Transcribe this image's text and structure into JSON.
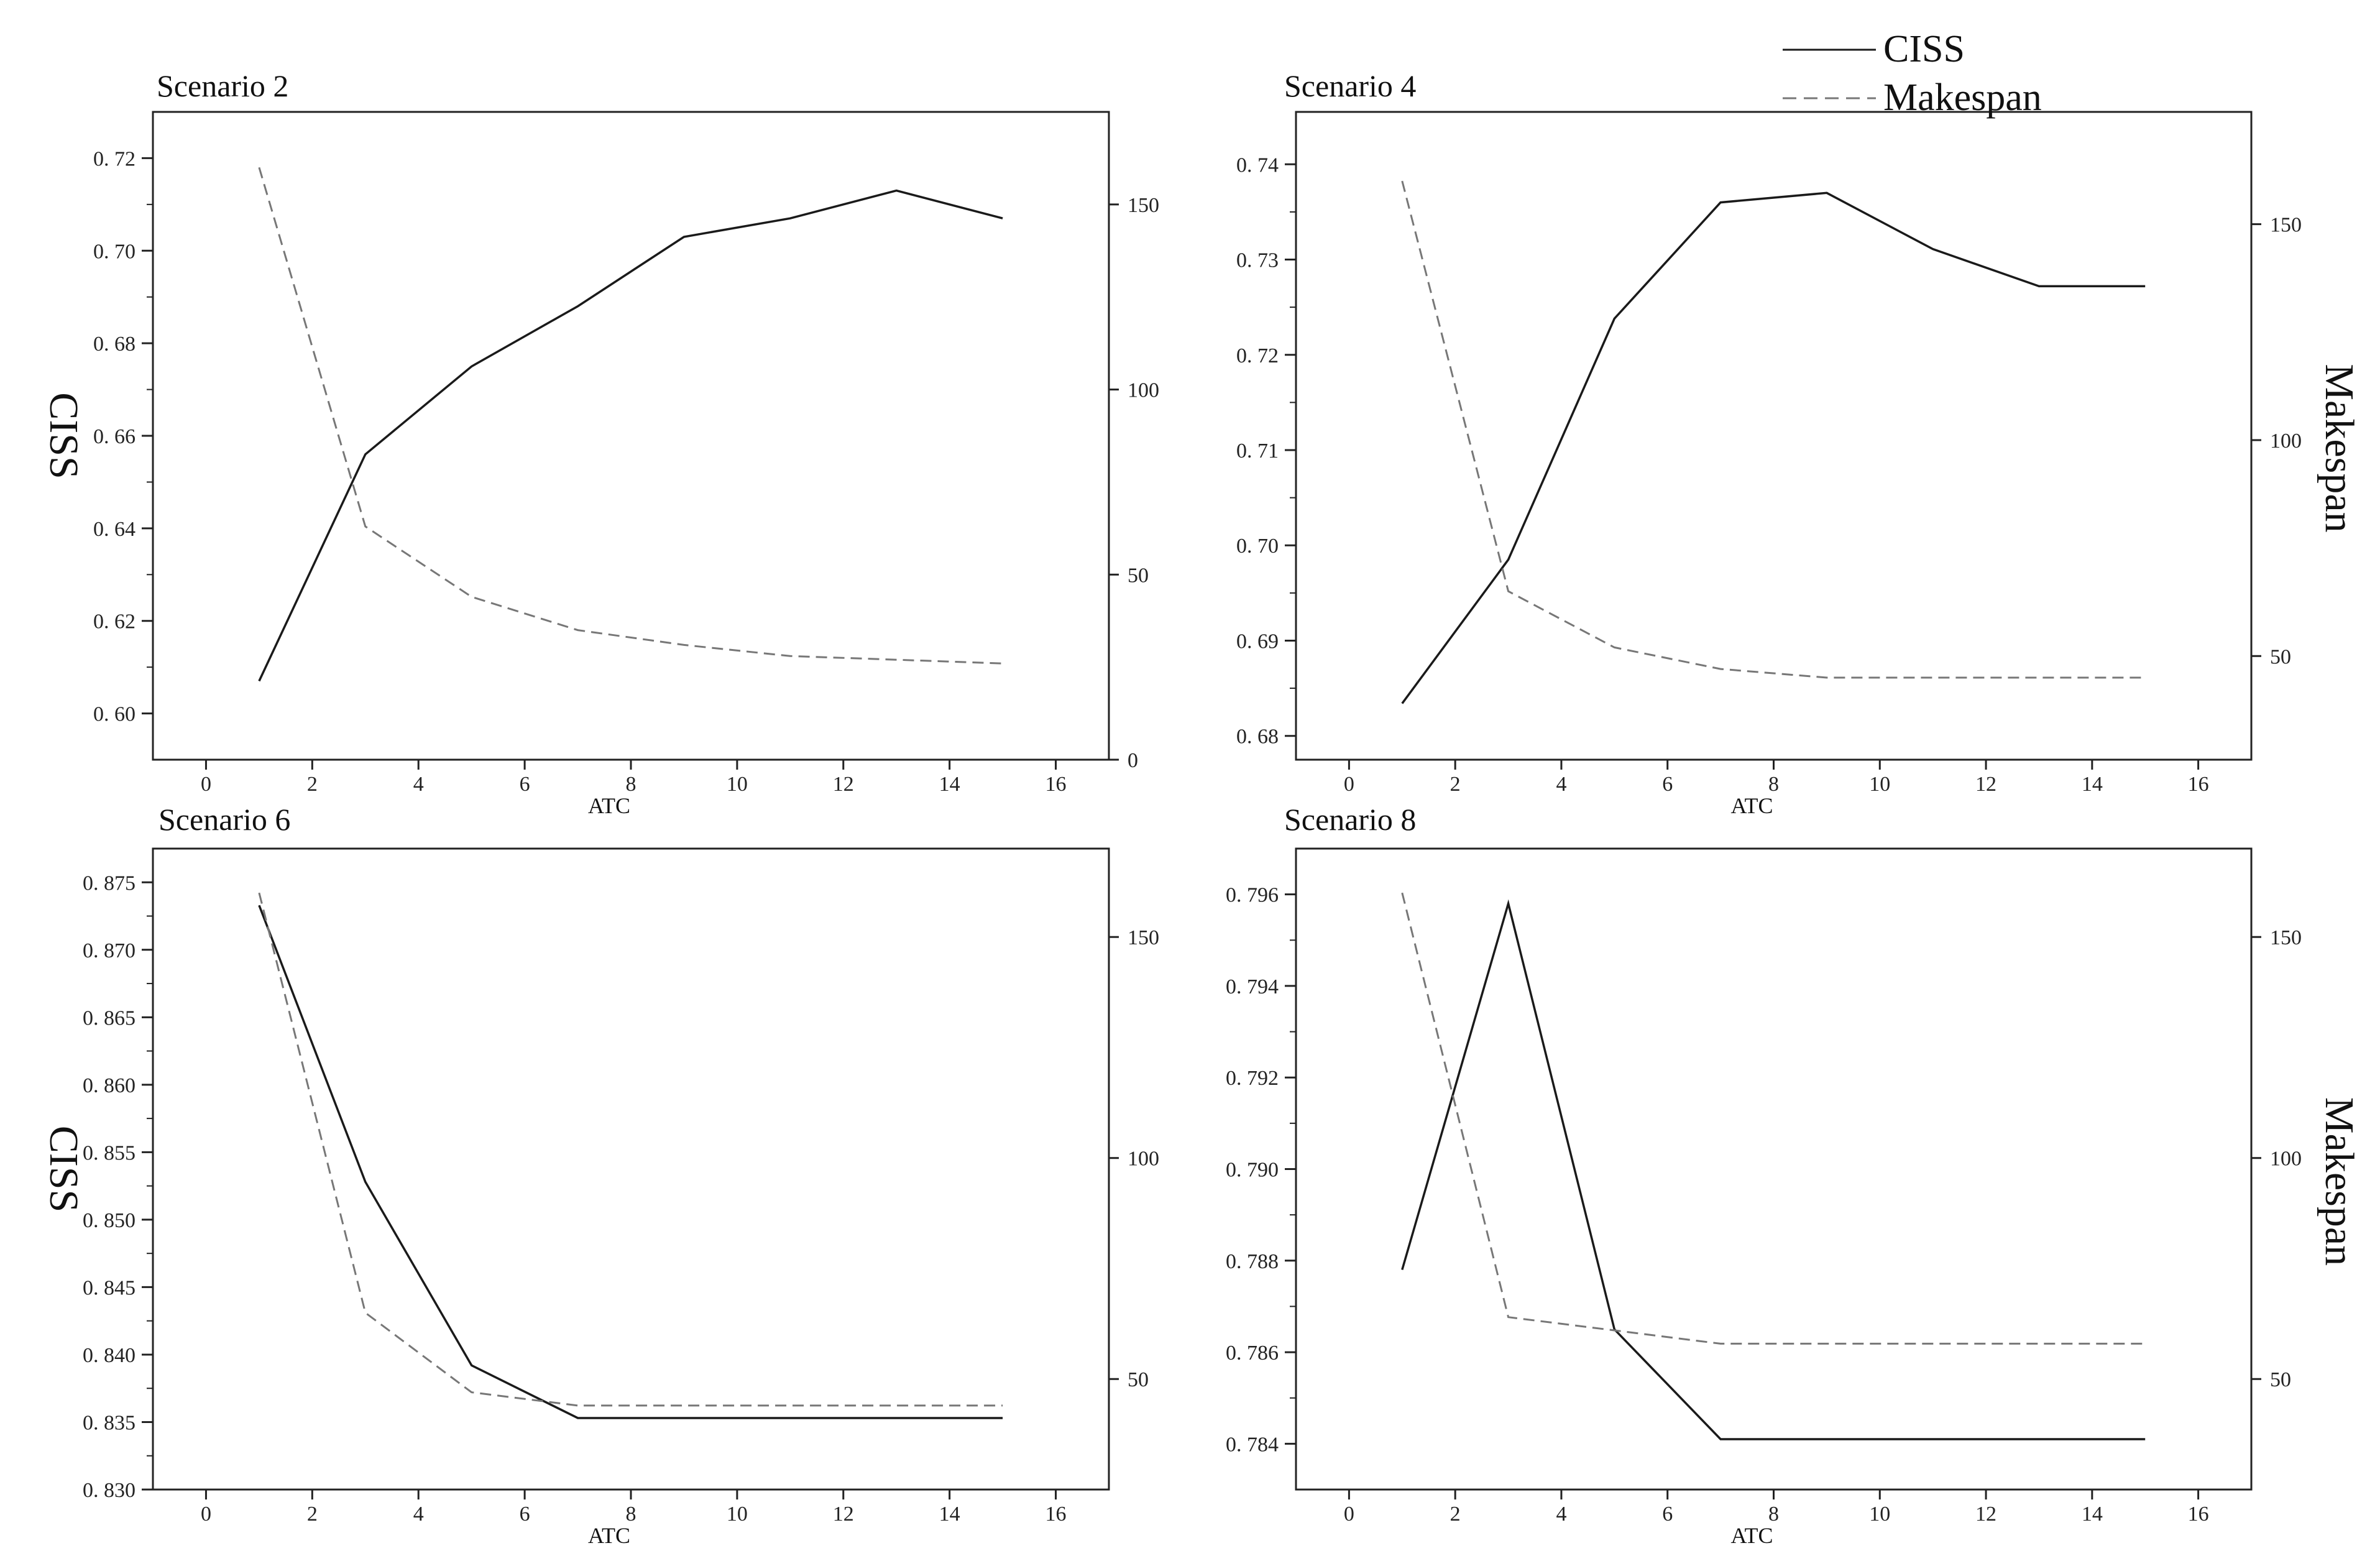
{
  "legend": {
    "entries": [
      {
        "label": "CISS",
        "style": "solid"
      },
      {
        "label": "Makespan",
        "style": "dashed"
      }
    ],
    "placement": "top-right"
  },
  "colors": {
    "ciss": "#1a1a1a",
    "makespan": "#777777",
    "axis": "#222222"
  },
  "chart_data": [
    {
      "type": "line",
      "title": "Scenario 2",
      "xlabel": "ATC",
      "ylabel": "CISS",
      "y2label": "",
      "xlim": [
        -1,
        17
      ],
      "xticks": [
        0,
        2,
        4,
        6,
        8,
        10,
        12,
        14,
        16
      ],
      "ylim": [
        0.59,
        0.73
      ],
      "yticks": [
        0.6,
        0.62,
        0.64,
        0.66,
        0.68,
        0.7,
        0.72
      ],
      "ytick_labels": [
        "0. 60",
        "0. 62",
        "0. 64",
        "0. 66",
        "0. 68",
        "0. 70",
        "0. 72"
      ],
      "y2lim": [
        0,
        175
      ],
      "y2ticks": [
        0,
        50,
        100,
        150
      ],
      "grid": false,
      "series": [
        {
          "name": "CISS",
          "axis": "left",
          "style": "solid",
          "x": [
            1,
            3,
            5,
            7,
            9,
            11,
            13,
            15
          ],
          "values": [
            0.607,
            0.656,
            0.675,
            0.688,
            0.703,
            0.707,
            0.713,
            0.707
          ]
        },
        {
          "name": "Makespan",
          "axis": "right",
          "style": "dashed",
          "x": [
            1,
            3,
            5,
            7,
            9,
            11,
            13,
            15
          ],
          "values": [
            160,
            63,
            44,
            35,
            31,
            28,
            27,
            26
          ]
        }
      ]
    },
    {
      "type": "line",
      "title": "Scenario 4",
      "xlabel": "ATC",
      "ylabel": "",
      "y2label": "Makespan",
      "xlim": [
        -1,
        17
      ],
      "xticks": [
        0,
        2,
        4,
        6,
        8,
        10,
        12,
        14,
        16
      ],
      "ylim": [
        0.6775,
        0.7455
      ],
      "yticks": [
        0.68,
        0.69,
        0.7,
        0.71,
        0.72,
        0.73,
        0.74
      ],
      "ytick_labels": [
        "0. 68",
        "0. 69",
        "0. 70",
        "0. 71",
        "0. 72",
        "0. 73",
        "0. 74"
      ],
      "y2lim": [
        26,
        176
      ],
      "y2ticks": [
        50,
        100,
        150
      ],
      "grid": false,
      "series": [
        {
          "name": "CISS",
          "axis": "left",
          "style": "solid",
          "x": [
            1,
            3,
            5,
            7,
            9,
            11,
            13,
            15
          ],
          "values": [
            0.6834,
            0.6985,
            0.7238,
            0.736,
            0.737,
            0.7311,
            0.7272,
            0.7272
          ]
        },
        {
          "name": "Makespan",
          "axis": "right",
          "style": "dashed",
          "x": [
            1,
            3,
            5,
            7,
            9,
            11,
            13,
            15
          ],
          "values": [
            160,
            65,
            52,
            47,
            45,
            45,
            45,
            45
          ]
        }
      ]
    },
    {
      "type": "line",
      "title": "Scenario 6",
      "xlabel": "ATC",
      "ylabel": "CISS",
      "y2label": "",
      "xlim": [
        -1,
        17
      ],
      "xticks": [
        0,
        2,
        4,
        6,
        8,
        10,
        12,
        14,
        16
      ],
      "ylim": [
        0.83,
        0.8775
      ],
      "yticks": [
        0.83,
        0.835,
        0.84,
        0.845,
        0.85,
        0.855,
        0.86,
        0.865,
        0.87,
        0.875
      ],
      "ytick_labels": [
        "0. 830",
        "0. 835",
        "0. 840",
        "0. 845",
        "0. 850",
        "0. 855",
        "0. 860",
        "0. 865",
        "0. 870",
        "0. 875"
      ],
      "y2lim": [
        25,
        170
      ],
      "y2ticks": [
        50,
        100,
        150
      ],
      "grid": false,
      "series": [
        {
          "name": "CISS",
          "axis": "left",
          "style": "solid",
          "x": [
            1,
            3,
            5,
            7,
            9,
            11,
            13,
            15
          ],
          "values": [
            0.8733,
            0.8528,
            0.8392,
            0.8353,
            0.8353,
            0.8353,
            0.8353,
            0.8353
          ]
        },
        {
          "name": "Makespan",
          "axis": "right",
          "style": "dashed",
          "x": [
            1,
            3,
            5,
            7,
            9,
            11,
            13,
            15
          ],
          "values": [
            160,
            65,
            47,
            44,
            44,
            44,
            44,
            44
          ]
        }
      ]
    },
    {
      "type": "line",
      "title": "Scenario 8",
      "xlabel": "ATC",
      "ylabel": "",
      "y2label": "Makespan",
      "xlim": [
        -1,
        17
      ],
      "xticks": [
        0,
        2,
        4,
        6,
        8,
        10,
        12,
        14,
        16
      ],
      "ylim": [
        0.783,
        0.797
      ],
      "yticks": [
        0.784,
        0.786,
        0.788,
        0.79,
        0.792,
        0.794,
        0.796
      ],
      "ytick_labels": [
        "0. 784",
        "0. 786",
        "0. 788",
        "0. 790",
        "0. 792",
        "0. 794",
        "0. 796"
      ],
      "y2lim": [
        25,
        170
      ],
      "y2ticks": [
        50,
        100,
        150
      ],
      "grid": false,
      "series": [
        {
          "name": "CISS",
          "axis": "left",
          "style": "solid",
          "x": [
            1,
            3,
            5,
            7,
            9,
            11,
            13,
            15
          ],
          "values": [
            0.7878,
            0.7958,
            0.7865,
            0.7841,
            0.7841,
            0.7841,
            0.7841,
            0.7841
          ]
        },
        {
          "name": "Makespan",
          "axis": "right",
          "style": "dashed",
          "x": [
            1,
            3,
            5,
            7,
            9,
            11,
            13,
            15
          ],
          "values": [
            160,
            64,
            61,
            58,
            58,
            58,
            58,
            58
          ]
        }
      ]
    }
  ]
}
